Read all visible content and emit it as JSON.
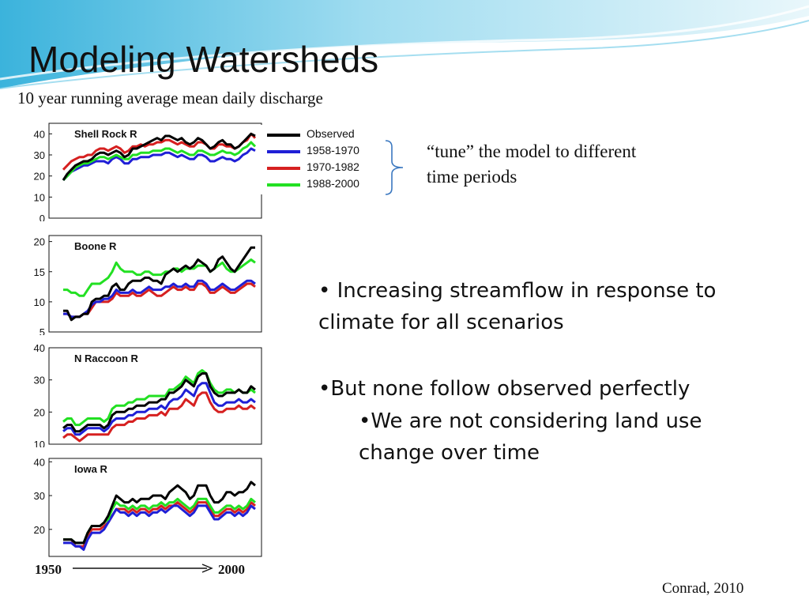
{
  "slide": {
    "title": "Modeling Watersheds",
    "subtitle": "10 year running average mean daily discharge",
    "tune_text": "“tune” the model to different time periods",
    "bullets": [
      "• Increasing streamflow in response to climate for all scenarios",
      "•But none follow observed perfectly",
      "•We are not considering land use change over time"
    ],
    "citation": "Conrad, 2010",
    "axis_start": "1950",
    "axis_end": "2000"
  },
  "colors": {
    "Observed": "#000000",
    "1958-1970": "#1f1fd6",
    "1970-1982": "#d62020",
    "1988-2000": "#22e022",
    "banner_light": "#bfeaf7",
    "banner_dark": "#2aa6d6"
  },
  "chart_data": [
    {
      "type": "line",
      "title": "Shell Rock R",
      "yticks": [
        0,
        10,
        20,
        30,
        40
      ],
      "ylim": [
        0,
        45
      ],
      "legend": [
        "Observed",
        "1958-1970",
        "1970-1982",
        "1988-2000"
      ],
      "series": [
        {
          "name": "Observed",
          "values": [
            18,
            21,
            23,
            25,
            26,
            27,
            27,
            28,
            30,
            31,
            31,
            30,
            31,
            32,
            31,
            29,
            30,
            33,
            33,
            34,
            35,
            36,
            37,
            38,
            37,
            39,
            39,
            38,
            37,
            38,
            36,
            35,
            36,
            38,
            37,
            35,
            33,
            34,
            36,
            37,
            35,
            35,
            33,
            34,
            36,
            38,
            40,
            39
          ]
        },
        {
          "name": "1958-1970",
          "values": [
            18,
            20,
            22,
            23,
            24,
            25,
            25,
            26,
            27,
            27,
            27,
            26,
            28,
            29,
            28,
            26,
            26,
            28,
            28,
            29,
            29,
            29,
            30,
            30,
            30,
            31,
            31,
            30,
            29,
            30,
            29,
            28,
            28,
            30,
            30,
            29,
            27,
            27,
            28,
            29,
            28,
            28,
            27,
            28,
            30,
            31,
            33,
            32
          ]
        },
        {
          "name": "1970-1982",
          "values": [
            23,
            25,
            27,
            28,
            29,
            29,
            30,
            30,
            32,
            33,
            33,
            32,
            33,
            34,
            33,
            31,
            32,
            34,
            34,
            35,
            34,
            35,
            35,
            36,
            36,
            37,
            37,
            36,
            35,
            36,
            35,
            34,
            34,
            36,
            36,
            35,
            33,
            33,
            35,
            35,
            34,
            34,
            33,
            34,
            36,
            37,
            40,
            38
          ]
        },
        {
          "name": "1988-2000",
          "values": [
            18,
            20,
            22,
            24,
            25,
            26,
            26,
            27,
            28,
            29,
            29,
            28,
            29,
            30,
            29,
            28,
            28,
            30,
            30,
            31,
            31,
            31,
            32,
            32,
            32,
            33,
            33,
            32,
            31,
            32,
            31,
            30,
            30,
            32,
            32,
            31,
            30,
            30,
            31,
            32,
            31,
            31,
            30,
            31,
            33,
            34,
            36,
            34
          ]
        }
      ]
    },
    {
      "type": "line",
      "title": "Boone R",
      "yticks": [
        5,
        10,
        15,
        20
      ],
      "ylim": [
        5,
        21
      ],
      "series": [
        {
          "name": "Observed",
          "values": [
            8.5,
            8.5,
            7,
            7.5,
            7.5,
            8,
            8,
            10,
            10.5,
            10.5,
            11,
            11,
            12.5,
            13,
            12,
            12,
            13,
            13.5,
            13.5,
            13.5,
            14,
            14,
            13.5,
            13.5,
            13,
            14.5,
            15,
            15.5,
            15,
            15.5,
            16,
            15.5,
            16,
            17,
            16.5,
            16,
            15,
            15.5,
            17,
            17.5,
            16.5,
            15.5,
            15,
            16,
            17,
            18,
            19,
            19
          ]
        },
        {
          "name": "1958-1970",
          "values": [
            8,
            8,
            7.5,
            7.5,
            7.5,
            8,
            8.5,
            9.5,
            10,
            10,
            10.5,
            10.5,
            11,
            12,
            11.5,
            11.5,
            11.5,
            12,
            11.5,
            11.5,
            12,
            12.5,
            12,
            12,
            12,
            12.5,
            12.5,
            13,
            12.5,
            12.5,
            13,
            12.5,
            12.5,
            13.5,
            13.5,
            13,
            12,
            12,
            12.5,
            13,
            12.5,
            12,
            12,
            12.5,
            13,
            13.5,
            13.5,
            13
          ]
        },
        {
          "name": "1970-1982",
          "values": [
            8,
            8,
            7.5,
            7.5,
            7.5,
            8,
            8,
            9,
            10,
            10,
            10,
            10,
            10.5,
            11.5,
            11,
            11,
            11,
            11.5,
            11,
            11,
            11.5,
            12,
            11.5,
            11,
            11,
            11.5,
            12,
            12.5,
            12,
            12,
            12.5,
            12,
            12,
            13,
            13,
            12.5,
            11.5,
            11.5,
            12,
            12.5,
            12,
            11.5,
            11.5,
            12,
            12.5,
            13,
            13,
            12.5
          ]
        },
        {
          "name": "1988-2000",
          "values": [
            12,
            12,
            11.5,
            11.5,
            11,
            11,
            12,
            13,
            13,
            13,
            13.5,
            14,
            15,
            16.5,
            15.5,
            15,
            15,
            15,
            14.5,
            14.5,
            15,
            15,
            14.5,
            14.5,
            14.5,
            15,
            15,
            15.5,
            15.5,
            15,
            15.5,
            15.5,
            15.5,
            16,
            16,
            16,
            15,
            15.5,
            16,
            16.5,
            15.5,
            15,
            15,
            15.5,
            16,
            16.5,
            17,
            16.5
          ]
        }
      ]
    },
    {
      "type": "line",
      "title": "N Raccoon R",
      "yticks": [
        10,
        20,
        30,
        40
      ],
      "ylim": [
        10,
        40
      ],
      "series": [
        {
          "name": "Observed",
          "values": [
            15,
            16,
            16,
            14,
            14,
            15,
            16,
            16,
            16,
            16,
            15,
            16,
            19,
            20,
            20,
            20,
            21,
            21,
            22,
            22,
            22,
            23,
            23,
            23,
            24,
            24,
            26,
            26,
            27,
            28,
            30,
            29,
            28,
            31,
            32,
            32,
            28,
            26,
            25,
            25,
            26,
            26,
            26,
            27,
            26,
            26,
            28,
            27
          ]
        },
        {
          "name": "1958-1970",
          "values": [
            14,
            15,
            15,
            13,
            13,
            14,
            15,
            15,
            15,
            15,
            14,
            15,
            17,
            18,
            18,
            18,
            19,
            19,
            20,
            20,
            20,
            21,
            21,
            21,
            22,
            21,
            23,
            24,
            24,
            25,
            27,
            26,
            25,
            28,
            29,
            29,
            26,
            23,
            22,
            22,
            23,
            23,
            23,
            24,
            23,
            23,
            24,
            23
          ]
        },
        {
          "name": "1970-1982",
          "values": [
            12,
            13,
            13,
            12,
            11,
            12,
            13,
            13,
            13,
            13,
            13,
            13,
            15,
            16,
            16,
            16,
            17,
            17,
            18,
            18,
            18,
            19,
            19,
            19,
            20,
            19,
            21,
            21,
            21,
            22,
            24,
            23,
            22,
            25,
            26,
            26,
            23,
            21,
            20,
            20,
            21,
            21,
            21,
            22,
            21,
            21,
            22,
            21
          ]
        },
        {
          "name": "1988-2000",
          "values": [
            17,
            18,
            18,
            16,
            16,
            17,
            18,
            18,
            18,
            18,
            17,
            18,
            21,
            22,
            22,
            22,
            23,
            23,
            24,
            24,
            24,
            25,
            25,
            25,
            25,
            25,
            27,
            27,
            28,
            29,
            31,
            30,
            29,
            32,
            33,
            32,
            29,
            27,
            26,
            26,
            27,
            27,
            26,
            27,
            26,
            26,
            27,
            26
          ]
        }
      ]
    },
    {
      "type": "line",
      "title": "Iowa R",
      "yticks": [
        20,
        30,
        40
      ],
      "ylim": [
        12,
        41
      ],
      "series": [
        {
          "name": "Observed",
          "values": [
            17,
            17,
            17,
            16,
            16,
            16,
            19,
            21,
            21,
            21,
            22,
            24,
            27,
            30,
            29,
            28,
            28,
            29,
            28,
            29,
            29,
            29,
            30,
            30,
            30,
            29,
            31,
            32,
            33,
            32,
            31,
            29,
            30,
            33,
            33,
            33,
            30,
            28,
            28,
            29,
            31,
            31,
            30,
            31,
            31,
            32,
            34,
            33
          ]
        },
        {
          "name": "1958-1970",
          "values": [
            16,
            16,
            16,
            15,
            15,
            14,
            17,
            19,
            19,
            19,
            20,
            22,
            24,
            26,
            25,
            25,
            24,
            25,
            24,
            25,
            25,
            24,
            25,
            25,
            26,
            25,
            26,
            27,
            27,
            26,
            25,
            24,
            25,
            27,
            27,
            27,
            25,
            23,
            23,
            24,
            25,
            25,
            24,
            25,
            24,
            25,
            27,
            26
          ]
        },
        {
          "name": "1970-1982",
          "values": [
            17,
            17,
            17,
            15,
            15,
            15,
            18,
            20,
            20,
            20,
            21,
            22,
            24,
            26,
            26,
            26,
            25,
            26,
            25,
            26,
            26,
            25,
            26,
            26,
            27,
            26,
            27,
            27,
            28,
            27,
            26,
            25,
            26,
            28,
            28,
            28,
            26,
            24,
            24,
            25,
            26,
            26,
            25,
            26,
            25,
            26,
            28,
            27
          ]
        },
        {
          "name": "1988-2000",
          "values": [
            17,
            17,
            17,
            16,
            16,
            16,
            19,
            21,
            21,
            21,
            22,
            23,
            26,
            28,
            27,
            27,
            26,
            27,
            26,
            27,
            27,
            26,
            27,
            27,
            28,
            27,
            28,
            28,
            29,
            28,
            27,
            26,
            27,
            29,
            29,
            29,
            27,
            25,
            25,
            26,
            27,
            27,
            26,
            27,
            26,
            27,
            29,
            28
          ]
        }
      ]
    }
  ]
}
